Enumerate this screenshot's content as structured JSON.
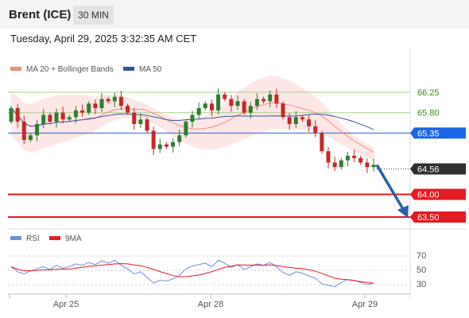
{
  "header": {
    "instrument": "Brent (ICE)",
    "timeframe": "30 MIN",
    "timestamp": "Tuesday, April 29, 2025 3:32:35 AM CET"
  },
  "legend": {
    "ma20": "MA 20 + Bollinger Bands",
    "ma50": "MA 50",
    "rsi": "RSI",
    "rsi_ma": "9MA"
  },
  "colors": {
    "ma20": "#f28b82",
    "ma50": "#34579a",
    "bollinger_fill": "#fde2e2",
    "candle_up": "#2e7d32",
    "candle_down": "#c62828",
    "resistance": "#a8d08d",
    "support": "#e31b23",
    "pivot": "#1a66e8",
    "arrow": "#2c5fa5",
    "rsi": "#6e8fd8"
  },
  "price_levels": [
    {
      "label": "66.25",
      "value": 66.25,
      "kind": "resistance"
    },
    {
      "label": "65.80",
      "value": 65.8,
      "kind": "resistance"
    },
    {
      "label": "65.35",
      "value": 65.35,
      "kind": "pivot"
    },
    {
      "label": "64.56",
      "value": 64.56,
      "kind": "current"
    },
    {
      "label": "64.00",
      "value": 64.0,
      "kind": "support"
    },
    {
      "label": "63.50",
      "value": 63.5,
      "kind": "support"
    }
  ],
  "x_axis": [
    "Apr 25",
    "Apr 28",
    "Apr 29"
  ],
  "rsi_axis": [
    "70",
    "50",
    "30"
  ],
  "chart_data": {
    "type": "candlestick",
    "closes": [
      65.9,
      65.6,
      65.2,
      65.3,
      65.55,
      65.75,
      65.6,
      65.8,
      65.65,
      65.7,
      65.85,
      65.8,
      66.0,
      65.9,
      66.1,
      66.05,
      66.15,
      65.95,
      65.8,
      65.55,
      65.65,
      65.4,
      65.0,
      65.1,
      65.05,
      65.15,
      65.3,
      65.6,
      65.75,
      65.9,
      66.0,
      65.85,
      66.2,
      66.1,
      65.95,
      66.05,
      65.8,
      65.95,
      66.1,
      66.05,
      66.2,
      66.0,
      65.7,
      65.55,
      65.7,
      65.65,
      65.5,
      65.35,
      64.95,
      64.7,
      64.6,
      64.75,
      64.85,
      64.8,
      64.7,
      64.6,
      64.65
    ],
    "rsi": [
      55,
      48,
      45,
      49,
      52,
      55,
      51,
      57,
      53,
      55,
      59,
      57,
      61,
      58,
      63,
      60,
      64,
      57,
      52,
      45,
      48,
      40,
      32,
      36,
      35,
      38,
      43,
      52,
      56,
      58,
      60,
      55,
      64,
      60,
      54,
      58,
      51,
      55,
      59,
      57,
      61,
      55,
      47,
      43,
      48,
      46,
      42,
      39,
      31,
      29,
      27,
      33,
      37,
      36,
      33,
      30,
      32
    ]
  }
}
